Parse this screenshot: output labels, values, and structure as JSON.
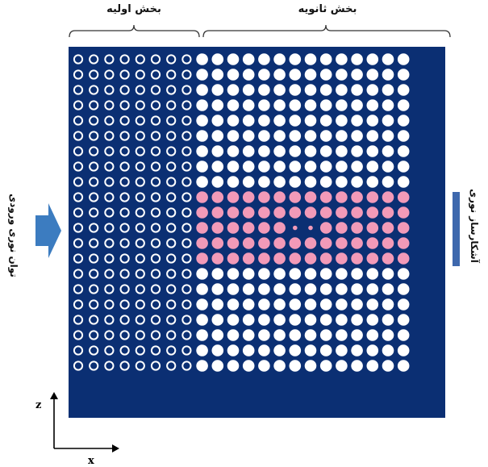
{
  "labels": {
    "primary_section": "بخش اولیه",
    "secondary_section": "بخش ثانویه",
    "input_power": "توان نوری ورودی",
    "detector": "آشکارساز نوری",
    "axis_z": "z",
    "axis_x": "x"
  },
  "lattice": {
    "rows": 21,
    "primary_columns": 8,
    "secondary_columns": 14,
    "highlighted_rows": [
      9,
      10,
      11,
      12,
      13
    ],
    "defect_rows": [
      11
    ],
    "colors": {
      "background": "#0b2f73",
      "primary_ring": "#ffffff",
      "secondary_rod": "#ffffff",
      "highlight_rod": "#f29ab8",
      "arrow": "#3c7cc0",
      "detector": "#3e68ad",
      "bracket": "#333333"
    }
  }
}
